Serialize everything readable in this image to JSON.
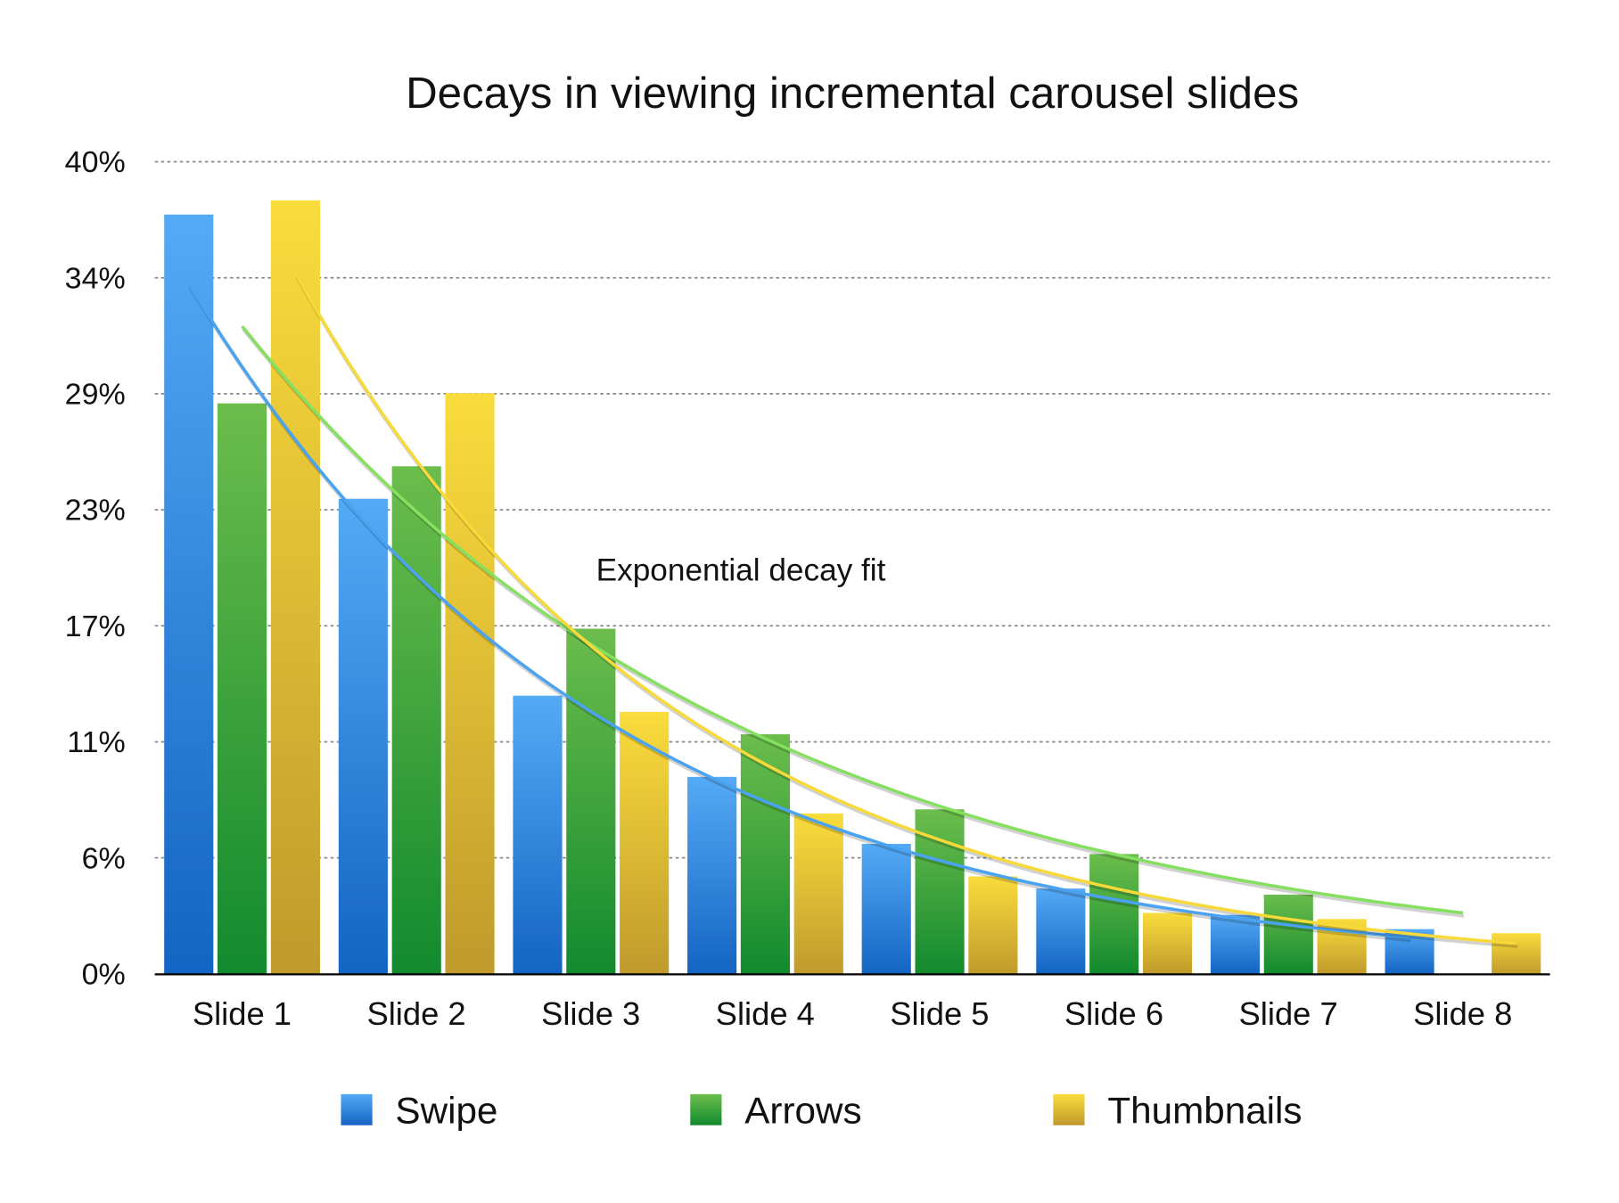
{
  "chart_data": {
    "type": "bar",
    "title": "Decays in viewing incremental carousel slides",
    "xlabel": "",
    "ylabel": "",
    "ylim": [
      0,
      40
    ],
    "y_ticks": [
      "0%",
      "6%",
      "11%",
      "17%",
      "23%",
      "29%",
      "34%",
      "40%"
    ],
    "grid": true,
    "legend_position": "bottom",
    "categories": [
      "Slide 1",
      "Slide 2",
      "Slide 3",
      "Slide 4",
      "Slide 5",
      "Slide 6",
      "Slide 7",
      "Slide 8"
    ],
    "series": [
      {
        "name": "Swipe",
        "color_top": "#55aaf5",
        "color_bottom": "#1464c3",
        "values": [
          37.4,
          23.4,
          13.7,
          9.7,
          6.4,
          4.2,
          2.9,
          2.2
        ]
      },
      {
        "name": "Arrows",
        "color_top": "#6cbd4c",
        "color_bottom": "#128a2e",
        "values": [
          28.1,
          25.0,
          17.0,
          11.8,
          8.1,
          5.9,
          3.9,
          null
        ]
      },
      {
        "name": "Thumbnails",
        "color_top": "#fadc3c",
        "color_bottom": "#c09a2c",
        "values": [
          38.1,
          28.6,
          12.9,
          7.9,
          4.8,
          3.0,
          2.7,
          2.0
        ]
      }
    ],
    "annotation": "Exponential decay fit",
    "fits": [
      {
        "series": "Swipe",
        "type": "exponential",
        "color": "#4aa3f0",
        "start": 34.0,
        "end": 1.8
      },
      {
        "series": "Arrows",
        "type": "exponential",
        "color": "#86e060",
        "start": 31.9,
        "end": 3.0
      },
      {
        "series": "Thumbnails",
        "type": "exponential",
        "color": "#f8d93a",
        "start": 34.5,
        "end": 1.5
      }
    ]
  }
}
